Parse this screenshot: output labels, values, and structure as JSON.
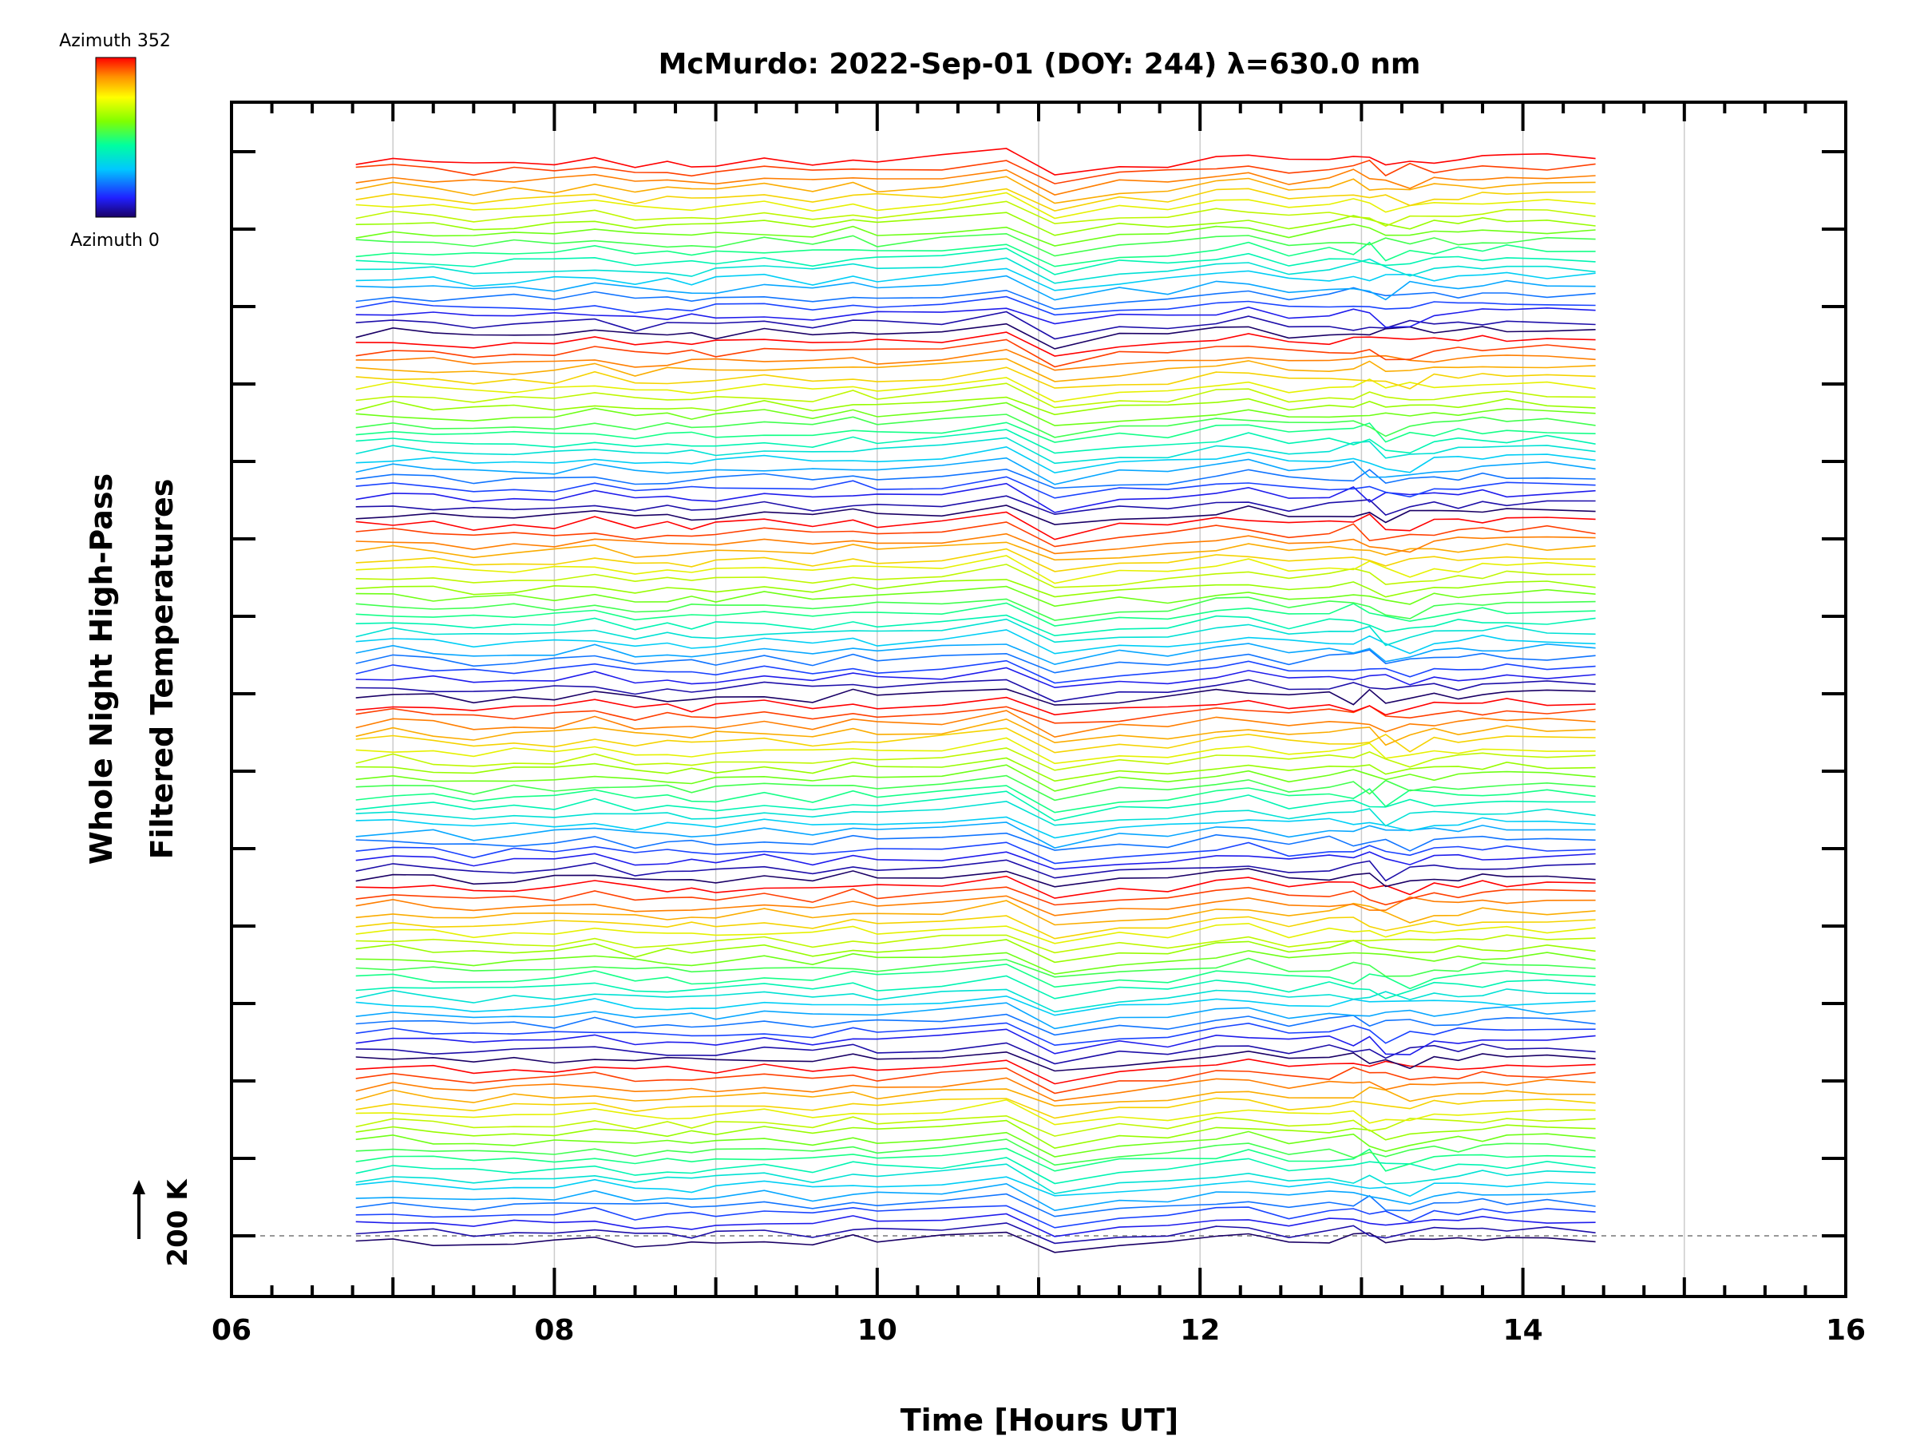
{
  "chart_data": {
    "type": "line",
    "title": "McMurdo: 2022-Sep-01 (DOY: 244) λ=630.0 nm",
    "xlabel": "Time [Hours UT]",
    "ylabel_line1": "Whole Night High-Pass",
    "ylabel_line2": "Filtered Temperatures",
    "scale_label": "200 K",
    "xlim": [
      6,
      16
    ],
    "x_ticks": [
      "06",
      "08",
      "10",
      "12",
      "14",
      "16"
    ],
    "grid": "vertical lines at each hour",
    "time_range": [
      6.77,
      14.45
    ],
    "n_traces": 120,
    "azimuth_range": [
      0,
      352
    ],
    "colorbar": {
      "top_label": "Azimuth 352",
      "bottom_label": "Azimuth 0",
      "colormap": "rainbow"
    },
    "baseline_dashed": true,
    "colors": {
      "axis": "#000000",
      "grid": "#cccccc",
      "baseline": "#999999"
    }
  }
}
